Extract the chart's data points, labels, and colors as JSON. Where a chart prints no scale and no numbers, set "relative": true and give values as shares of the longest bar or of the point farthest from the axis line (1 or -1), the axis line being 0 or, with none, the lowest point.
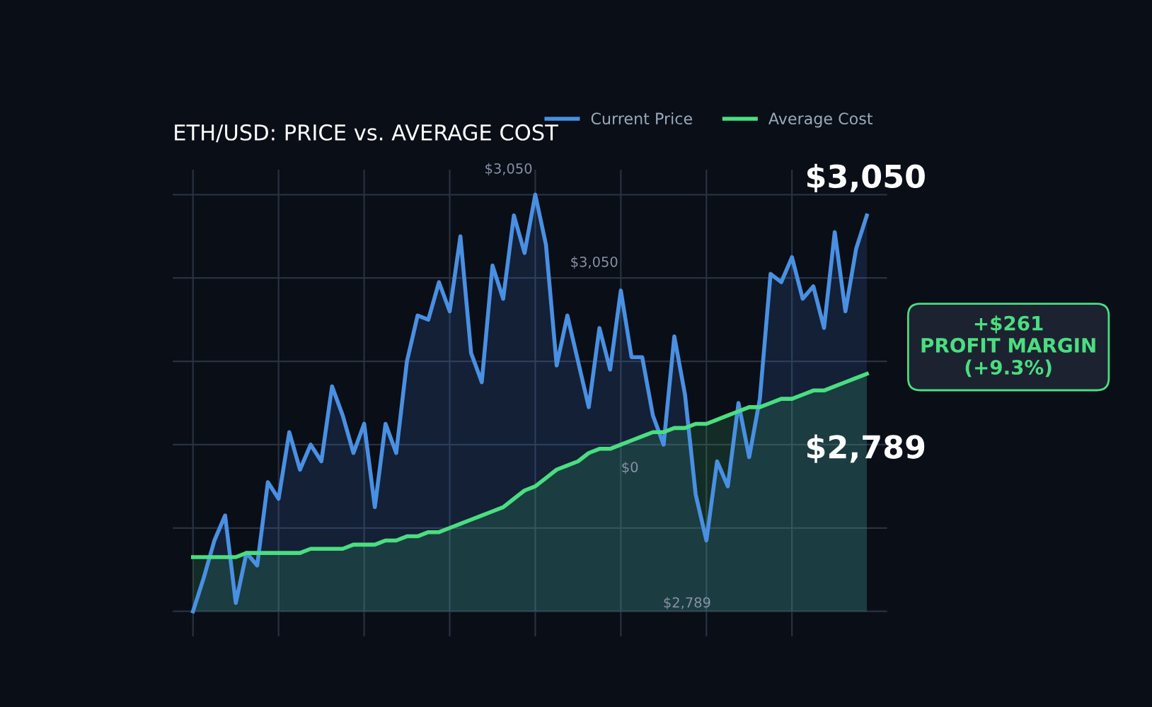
{
  "chart_data": {
    "type": "area",
    "title": "ETH/USD: PRICE vs. AVERAGE COST",
    "relative": true,
    "grid": true,
    "legend": "top right",
    "categories": [
      null,
      null,
      null,
      null,
      null,
      null,
      null,
      null,
      null,
      null,
      null,
      null,
      null,
      null,
      null,
      null,
      null,
      null,
      null,
      null,
      null,
      null,
      null,
      null,
      null,
      null,
      null,
      null,
      null,
      null,
      null,
      null,
      null,
      null,
      null,
      null,
      null,
      null,
      null,
      null,
      null,
      null,
      null,
      null,
      null,
      null,
      null,
      null,
      null,
      null,
      null,
      null,
      null,
      null,
      null,
      null,
      null,
      null,
      null,
      null,
      null,
      null,
      null,
      null
    ],
    "series": [
      {
        "name": "Current Price",
        "color": "#4a90e2",
        "values": [
          0,
          0.08,
          0.17,
          0.23,
          0.02,
          0.14,
          0.11,
          0.31,
          0.27,
          0.43,
          0.34,
          0.4,
          0.36,
          0.54,
          0.47,
          0.38,
          0.45,
          0.25,
          0.45,
          0.38,
          0.6,
          0.71,
          0.7,
          0.79,
          0.72,
          0.9,
          0.62,
          0.55,
          0.83,
          0.75,
          0.95,
          0.86,
          1,
          0.88,
          0.59,
          0.71,
          0.6,
          0.49,
          0.68,
          0.58,
          0.77,
          0.61,
          0.61,
          0.47,
          0.4,
          0.66,
          0.52,
          0.28,
          0.17,
          0.36,
          0.3,
          0.5,
          0.37,
          0.51,
          0.81,
          0.79,
          0.85,
          0.75,
          0.78,
          0.68,
          0.91,
          0.72,
          0.87,
          0.95
        ]
      },
      {
        "name": "Average Cost",
        "color": "#4ade80",
        "values": [
          0.13,
          0.13,
          0.13,
          0.13,
          0.13,
          0.14,
          0.14,
          0.14,
          0.14,
          0.14,
          0.14,
          0.15,
          0.15,
          0.15,
          0.15,
          0.16,
          0.16,
          0.16,
          0.17,
          0.17,
          0.18,
          0.18,
          0.19,
          0.19,
          0.2,
          0.21,
          0.22,
          0.23,
          0.24,
          0.25,
          0.27,
          0.29,
          0.3,
          0.32,
          0.34,
          0.35,
          0.36,
          0.38,
          0.39,
          0.39,
          0.4,
          0.41,
          0.42,
          0.43,
          0.43,
          0.44,
          0.44,
          0.45,
          0.45,
          0.46,
          0.47,
          0.48,
          0.49,
          0.49,
          0.5,
          0.51,
          0.51,
          0.52,
          0.53,
          0.53,
          0.54,
          0.55,
          0.56,
          0.57
        ]
      }
    ],
    "annotations": [
      "$3,050",
      "$2,789",
      "+$261\nPROFIT MARGIN\n(+9.3%)",
      "$3,050",
      "$3,050",
      "$0",
      "$2,789"
    ]
  }
}
